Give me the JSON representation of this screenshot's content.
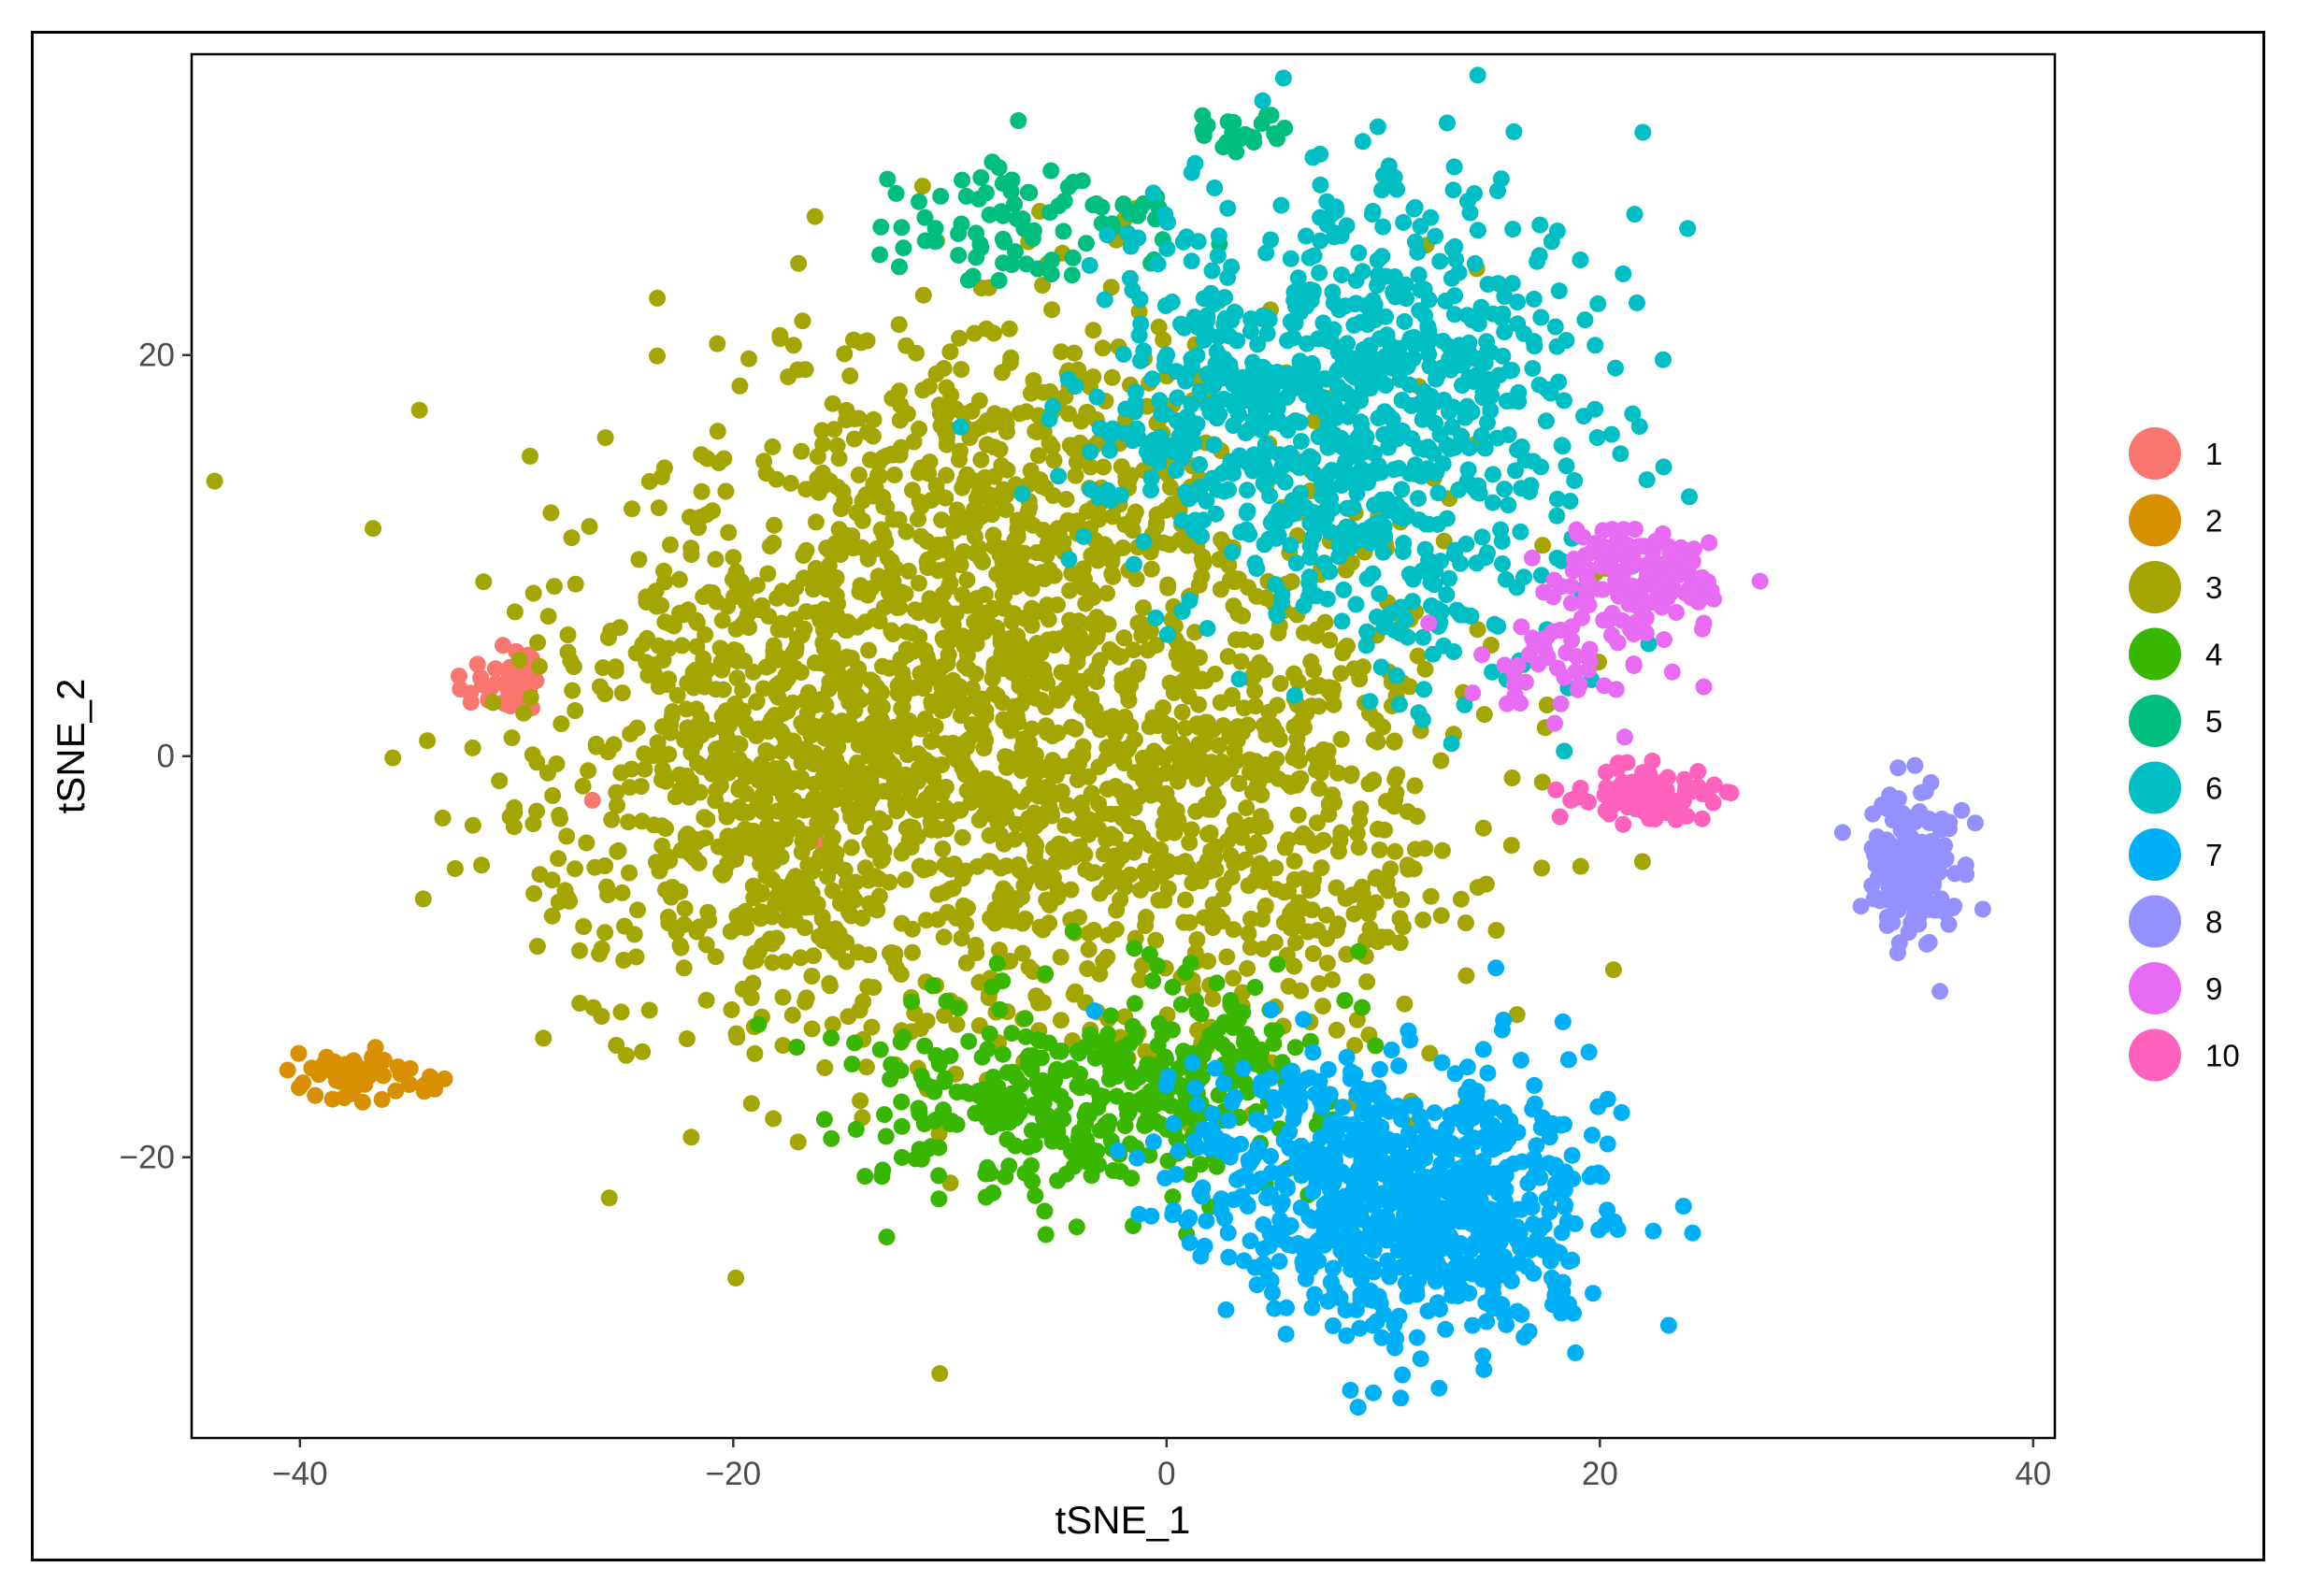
{
  "chart_data": {
    "type": "scatter",
    "title": "",
    "xlabel": "tSNE_1",
    "ylabel": "tSNE_2",
    "xlim": [
      -45,
      41
    ],
    "ylim": [
      -34,
      35
    ],
    "xticks": [
      -40,
      -20,
      0,
      20,
      40
    ],
    "yticks": [
      -20,
      0,
      20
    ],
    "xtick_labels": [
      "−40",
      "−20",
      "0",
      "20",
      "40"
    ],
    "ytick_labels": [
      "−20",
      "0",
      "20"
    ],
    "grid": false,
    "legend_position": "right",
    "series": [
      {
        "name": "1",
        "color": "#F8766D",
        "count": 40,
        "clusters": [
          {
            "cx": -30.5,
            "cy": 3.5,
            "sx": 1.0,
            "sy": 1.2,
            "n": 38
          }
        ],
        "extra_points": [
          [
            -26.5,
            -2.2
          ],
          [
            -16.2,
            -4.2
          ]
        ]
      },
      {
        "name": "2",
        "color": "#D89000",
        "count": 70,
        "clusters": [
          {
            "cx": -37.5,
            "cy": -16.0,
            "sx": 1.6,
            "sy": 0.6,
            "n": 70
          }
        ]
      },
      {
        "name": "3",
        "color": "#A3A500",
        "count": 2600,
        "clusters": [
          {
            "cx": -8.0,
            "cy": 2.0,
            "sx": 9.0,
            "sy": 8.0,
            "n": 1500
          },
          {
            "cx": -18.0,
            "cy": -2.0,
            "sx": 5.0,
            "sy": 6.0,
            "n": 500
          },
          {
            "cx": -6.0,
            "cy": 14.0,
            "sx": 6.0,
            "sy": 4.5,
            "n": 300
          },
          {
            "cx": 4.0,
            "cy": -4.0,
            "sx": 6.0,
            "sy": 5.0,
            "n": 300
          }
        ]
      },
      {
        "name": "4",
        "color": "#39B600",
        "count": 400,
        "clusters": [
          {
            "cx": -5.0,
            "cy": -17.0,
            "sx": 4.5,
            "sy": 2.6,
            "n": 300
          },
          {
            "cx": 2.0,
            "cy": -16.0,
            "sx": 3.0,
            "sy": 2.2,
            "n": 100
          }
        ]
      },
      {
        "name": "5",
        "color": "#00BF7D",
        "count": 110,
        "clusters": [
          {
            "cx": -7.5,
            "cy": 26.5,
            "sx": 2.6,
            "sy": 1.8,
            "n": 70
          },
          {
            "cx": 3.5,
            "cy": 31.0,
            "sx": 1.1,
            "sy": 0.6,
            "n": 22
          },
          {
            "cx": -2.0,
            "cy": 27.0,
            "sx": 1.3,
            "sy": 0.8,
            "n": 18
          }
        ]
      },
      {
        "name": "6",
        "color": "#00BFC4",
        "count": 900,
        "clusters": [
          {
            "cx": 10.0,
            "cy": 19.0,
            "sx": 5.0,
            "sy": 5.0,
            "n": 600
          },
          {
            "cx": 3.0,
            "cy": 16.0,
            "sx": 4.0,
            "sy": 4.0,
            "n": 200
          },
          {
            "cx": 12.0,
            "cy": 8.0,
            "sx": 4.0,
            "sy": 3.0,
            "n": 100
          }
        ]
      },
      {
        "name": "7",
        "color": "#00B0F6",
        "count": 800,
        "clusters": [
          {
            "cx": 12.0,
            "cy": -22.5,
            "sx": 4.0,
            "sy": 3.3,
            "n": 650
          },
          {
            "cx": 5.0,
            "cy": -20.0,
            "sx": 3.5,
            "sy": 3.0,
            "n": 150
          }
        ]
      },
      {
        "name": "8",
        "color": "#9590FF",
        "count": 170,
        "clusters": [
          {
            "cx": 34.5,
            "cy": -5.5,
            "sx": 1.1,
            "sy": 1.8,
            "n": 170
          }
        ]
      },
      {
        "name": "9",
        "color": "#E76BF3",
        "count": 190,
        "clusters": [
          {
            "cx": 22.0,
            "cy": 9.0,
            "sx": 2.0,
            "sy": 1.5,
            "n": 150
          },
          {
            "cx": 17.5,
            "cy": 4.5,
            "sx": 2.0,
            "sy": 1.5,
            "n": 40
          }
        ]
      },
      {
        "name": "10",
        "color": "#FF62BC",
        "count": 80,
        "clusters": [
          {
            "cx": 22.0,
            "cy": -1.8,
            "sx": 1.7,
            "sy": 0.8,
            "n": 80
          }
        ]
      }
    ]
  }
}
